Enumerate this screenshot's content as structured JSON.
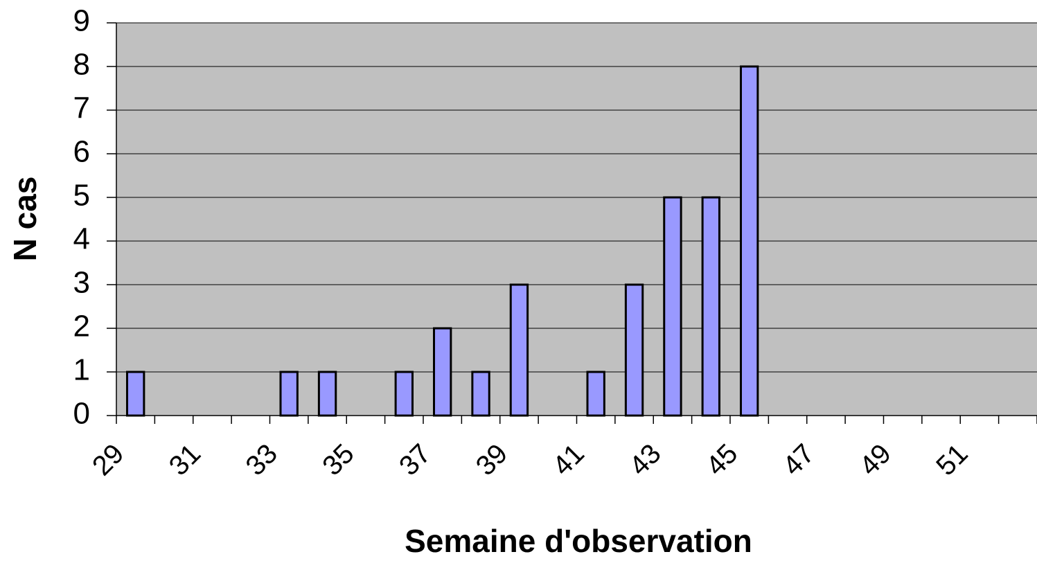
{
  "chart_data": {
    "type": "bar",
    "x_label": "Semaine d'observation",
    "y_label": "N cas",
    "categories": [
      "29",
      null,
      "31",
      null,
      "33",
      null,
      "35",
      null,
      "37",
      null,
      "39",
      null,
      "41",
      null,
      "43",
      null,
      "45",
      null,
      "47",
      null,
      "49",
      null,
      "51",
      null
    ],
    "values": [
      1,
      0,
      0,
      0,
      1,
      1,
      0,
      1,
      2,
      1,
      3,
      0,
      1,
      3,
      5,
      5,
      8,
      0,
      0,
      0,
      0,
      0,
      0,
      0
    ],
    "color": "#9999ff",
    "background": "#c0c0c0",
    "ylim": [
      0,
      9
    ],
    "yticks": [
      0,
      1,
      2,
      3,
      4,
      5,
      6,
      7,
      8,
      9
    ],
    "grid": true
  }
}
